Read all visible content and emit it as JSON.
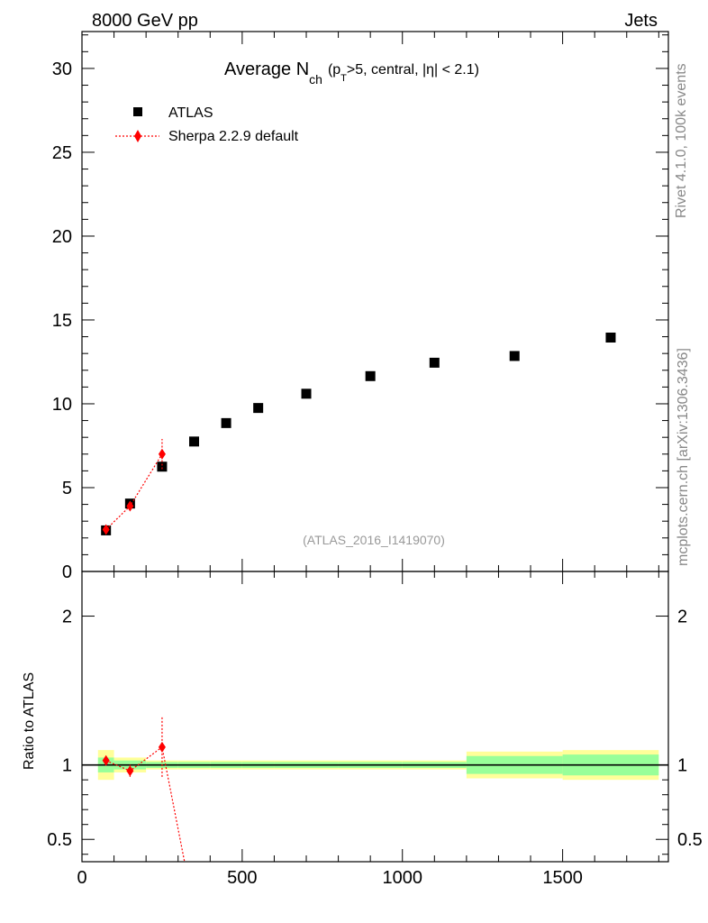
{
  "header": {
    "left": "8000 GeV pp",
    "right": "Jets"
  },
  "title": {
    "main": "Average N",
    "sub_ch": "ch",
    "paren_open": "(p",
    "sub_T": "T",
    "rest": ">5, central, |η| < 2.1)"
  },
  "side_labels": {
    "rivet": "Rivet 4.1.0,  100k events",
    "mcplots": "mcplots.cern.ch [arXiv:1306.3436]"
  },
  "analysis_id": "(ATLAS_2016_I1419070)",
  "ratio_ylabel": "Ratio to ATLAS",
  "colors": {
    "data": "#000000",
    "mc": "#ff0000",
    "band_inner": "#99ff99",
    "band_outer": "#ffff99",
    "side_text": "#888888"
  },
  "chart_data": {
    "type": "scatter",
    "xlim": [
      0,
      1830
    ],
    "main": {
      "ylim": [
        0,
        32.2
      ],
      "yticks": [
        0,
        5,
        10,
        15,
        20,
        25,
        30
      ],
      "ytick_labels": [
        "0",
        "5",
        "10",
        "15",
        "20",
        "25",
        "30"
      ]
    },
    "ratio": {
      "ylim": [
        0.35,
        2.3
      ],
      "yticks": [
        0.5,
        1,
        2
      ],
      "ytick_labels": [
        "0.5",
        "1",
        "2"
      ]
    },
    "xticks": [
      0,
      500,
      1000,
      1500
    ],
    "xtick_labels": [
      "0",
      "500",
      "1000",
      "1500"
    ],
    "legend": {
      "position": "top-left"
    },
    "series": [
      {
        "name": "ATLAS",
        "marker": "square",
        "x": [
          75,
          150,
          250,
          350,
          450,
          550,
          700,
          900,
          1100,
          1350,
          1650
        ],
        "y": [
          2.45,
          4.05,
          6.25,
          7.75,
          8.85,
          9.75,
          10.6,
          11.65,
          12.45,
          12.85,
          13.95
        ],
        "xlow": [
          50,
          100,
          200,
          300,
          400,
          500,
          600,
          800,
          1000,
          1200,
          1500
        ],
        "xhigh": [
          100,
          200,
          300,
          400,
          500,
          600,
          800,
          1000,
          1200,
          1500,
          1800
        ],
        "ratio_band_inner": [
          0.05,
          0.03,
          0.02,
          0.02,
          0.02,
          0.02,
          0.02,
          0.02,
          0.02,
          0.06,
          0.07
        ],
        "ratio_band_outer": [
          0.1,
          0.05,
          0.03,
          0.03,
          0.03,
          0.03,
          0.03,
          0.03,
          0.03,
          0.09,
          0.1
        ]
      },
      {
        "name": "Sherpa 2.2.9 default",
        "marker": "diamond",
        "x": [
          75,
          150,
          250
        ],
        "y": [
          2.5,
          3.9,
          7.0
        ],
        "yerr": [
          0.1,
          0.2,
          0.9
        ],
        "ratio": [
          1.03,
          0.96,
          1.12
        ],
        "ratio_err": [
          0.03,
          0.04,
          0.2
        ],
        "ratio_tail_x": 320,
        "ratio_tail_y": 0.35
      }
    ]
  }
}
